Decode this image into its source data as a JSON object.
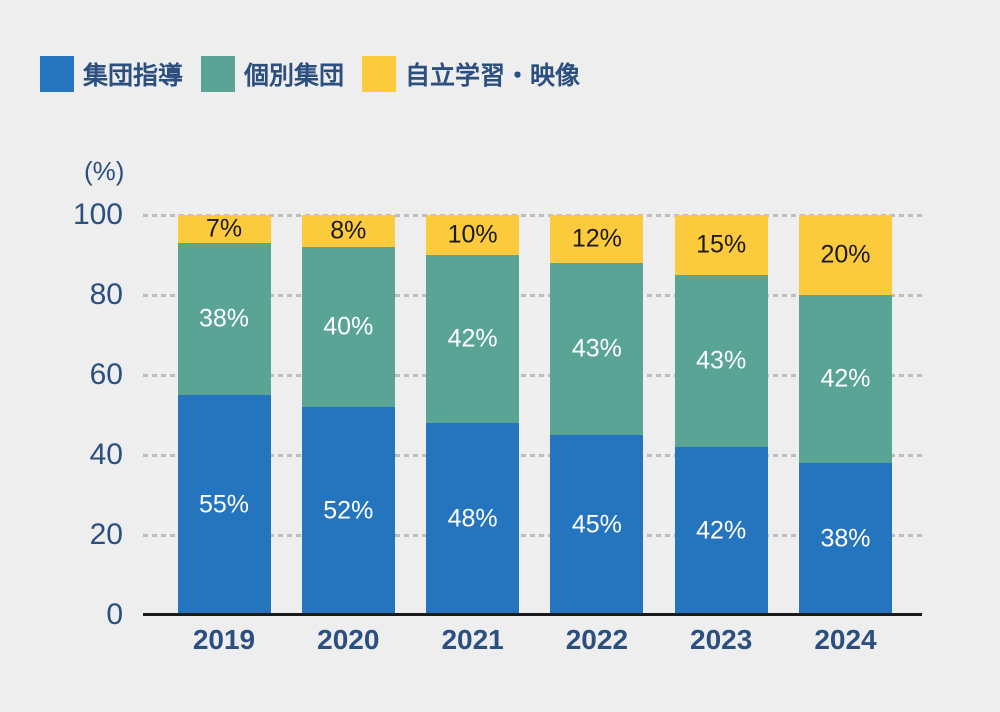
{
  "colors": {
    "background": "#EEEEEE",
    "text_navy": "#2B4F7F",
    "grid": "#BDBDBD",
    "axis_line": "#1A1A1A"
  },
  "chart_data": {
    "type": "bar",
    "stacked": true,
    "orientation": "vertical",
    "title": "",
    "unit_label": "(%)",
    "value_suffix": "%",
    "categories": [
      "2019",
      "2020",
      "2021",
      "2022",
      "2023",
      "2024"
    ],
    "series": [
      {
        "name": "集団指導",
        "color": "#2574BE",
        "label_color": "#FFFFFF",
        "values": [
          55,
          52,
          48,
          45,
          42,
          38
        ]
      },
      {
        "name": "個別集団",
        "color": "#5AA496",
        "label_color": "#FFFFFF",
        "values": [
          38,
          40,
          42,
          43,
          43,
          42
        ]
      },
      {
        "name": "自立学習・映像",
        "color": "#FBCA3D",
        "label_color": "#1A1A1A",
        "values": [
          7,
          8,
          10,
          12,
          15,
          20
        ]
      }
    ],
    "ylim": [
      0,
      100
    ],
    "yticks": [
      100,
      80,
      60,
      40,
      20,
      0
    ],
    "grid": "horizontal-dashed",
    "legend_position": "top-left"
  }
}
